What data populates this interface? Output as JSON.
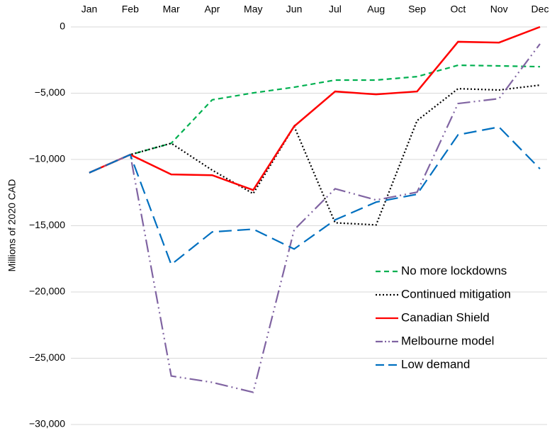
{
  "chart_data": {
    "type": "line",
    "y_label": "Millions of 2020 CAD",
    "categories": [
      "Jan",
      "Feb",
      "Mar",
      "Apr",
      "May",
      "Jun",
      "Jul",
      "Aug",
      "Sep",
      "Oct",
      "Nov",
      "Dec"
    ],
    "ylim": [
      -30000,
      0
    ],
    "yticks": [
      0,
      {
        "value": -5000,
        "label": "−5,000"
      },
      {
        "value": -10000,
        "label": "−10,000"
      },
      {
        "value": -15000,
        "label": "−15,000"
      },
      {
        "value": -20000,
        "label": "−20,000"
      },
      {
        "value": -25000,
        "label": "−25,000"
      },
      {
        "value": -30000,
        "label": "−30,000"
      }
    ],
    "grid": true,
    "legend_position": "lower right",
    "series": [
      {
        "name": "No more lockdowns",
        "color": "#00b050",
        "dash": "dashed",
        "values": [
          -11000,
          -9640,
          -8780,
          -5500,
          -4980,
          -4550,
          -4010,
          -4010,
          -3750,
          -2890,
          -2940,
          -3000
        ]
      },
      {
        "name": "Continued mitigation",
        "color": "#000000",
        "dash": "dotted",
        "values": [
          -11000,
          -9640,
          -8780,
          -10810,
          -12580,
          -7500,
          -14780,
          -14940,
          -7070,
          -4660,
          -4760,
          -4390
        ]
      },
      {
        "name": "Canadian Shield",
        "color": "#ff0000",
        "dash": "solid",
        "values": [
          -11000,
          -9640,
          -11130,
          -11190,
          -12310,
          -7500,
          -4870,
          -5090,
          -4870,
          -1120,
          -1180,
          0
        ]
      },
      {
        "name": "Melbourne model",
        "color": "#8064a2",
        "dash": "dashdotdot",
        "values": [
          -11000,
          -9640,
          -26340,
          -26820,
          -27570,
          -15310,
          -12210,
          -13060,
          -12470,
          -5780,
          -5410,
          -1280
        ]
      },
      {
        "name": "Low demand",
        "color": "#0070c0",
        "dash": "longdash",
        "values": [
          -11000,
          -9640,
          -17930,
          -15470,
          -15260,
          -16760,
          -14560,
          -13220,
          -12630,
          -8140,
          -7550,
          -10710
        ]
      }
    ]
  }
}
